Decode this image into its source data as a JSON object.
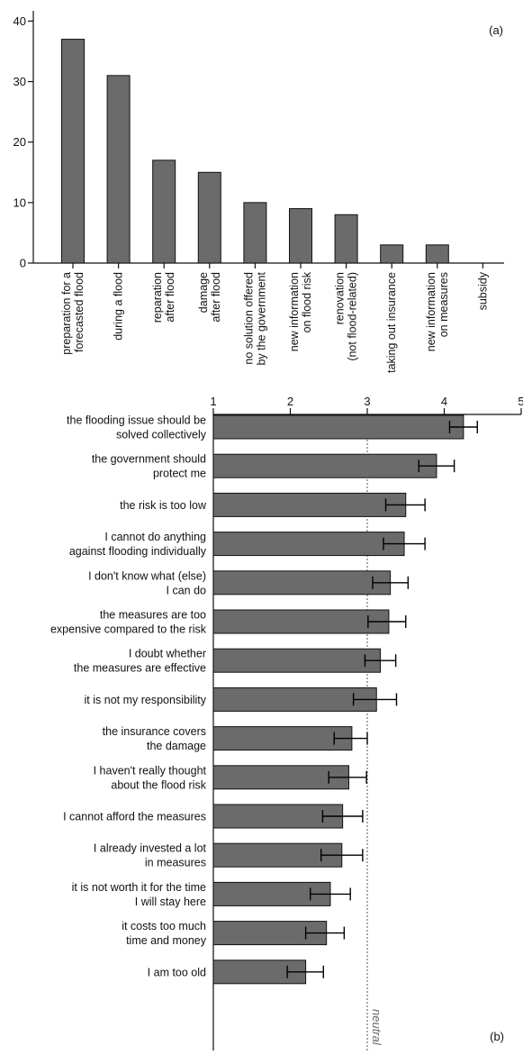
{
  "colors": {
    "bar": "#6b6b6b",
    "bar_stroke": "#111111",
    "axis": "#111111",
    "neutral_line": "#555555"
  },
  "chart_data": [
    {
      "type": "bar",
      "panel_label": "(a)",
      "categories": [
        [
          "preparation for a",
          "forecasted flood"
        ],
        [
          "during a flood"
        ],
        [
          "reparation",
          "after flood"
        ],
        [
          "damage",
          "after flood"
        ],
        [
          "no solution offered",
          "by the government"
        ],
        [
          "new information",
          "on flood risk"
        ],
        [
          "renovation",
          "(not flood-related)"
        ],
        [
          "taking out insurance"
        ],
        [
          "new information",
          "on measures"
        ],
        [
          "subsidy"
        ]
      ],
      "values": [
        37,
        31,
        17,
        15,
        10,
        9,
        8,
        3,
        3,
        0
      ],
      "ylim": [
        0,
        42
      ],
      "yticks": [
        0,
        10,
        20,
        30,
        40
      ],
      "xlabel": "",
      "ylabel": "",
      "grid": false
    },
    {
      "type": "bar",
      "orientation": "horizontal",
      "panel_label": "(b)",
      "categories": [
        [
          "the flooding issue should be",
          "solved collectively"
        ],
        [
          "the government should",
          "protect me"
        ],
        [
          "the risk is too low"
        ],
        [
          "I cannot do anything",
          "against flooding individually"
        ],
        [
          "I don't know what (else)",
          "I can do"
        ],
        [
          "the measures are too",
          "expensive compared to the risk"
        ],
        [
          "I doubt whether",
          "the measures are effective"
        ],
        [
          "it is not my responsibility"
        ],
        [
          "the insurance covers",
          "the damage"
        ],
        [
          "I haven't really thought",
          "about the flood risk"
        ],
        [
          "I cannot afford the measures"
        ],
        [
          "I already invested a lot",
          "in measures"
        ],
        [
          "it is not worth it for the time",
          "I will stay here"
        ],
        [
          "it costs too much",
          "time and money"
        ],
        [
          "I am too old"
        ]
      ],
      "values": [
        4.25,
        3.9,
        3.5,
        3.48,
        3.3,
        3.28,
        3.17,
        3.12,
        2.8,
        2.76,
        2.68,
        2.67,
        2.52,
        2.47,
        2.2
      ],
      "error_low": [
        4.07,
        3.67,
        3.24,
        3.21,
        3.07,
        3.01,
        2.97,
        2.82,
        2.57,
        2.5,
        2.42,
        2.4,
        2.26,
        2.2,
        1.96
      ],
      "error_high": [
        4.43,
        4.13,
        3.75,
        3.75,
        3.53,
        3.5,
        3.37,
        3.38,
        3.0,
        2.99,
        2.94,
        2.94,
        2.78,
        2.7,
        2.43
      ],
      "xlim": [
        1,
        5
      ],
      "xticks": [
        1,
        2,
        3,
        4,
        5
      ],
      "reference_line": 3,
      "reference_label": "neutral",
      "xlabel": "",
      "ylabel": "",
      "grid": false
    }
  ]
}
